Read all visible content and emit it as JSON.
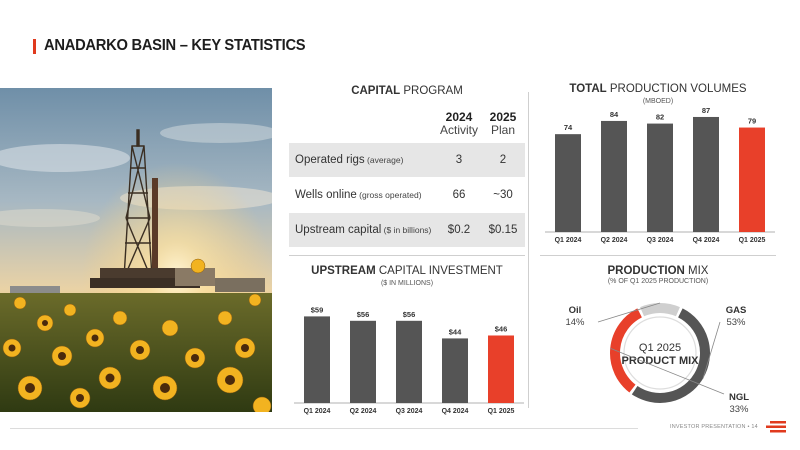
{
  "header": {
    "title": "ANADARKO BASIN – KEY STATISTICS"
  },
  "capital_program": {
    "title_bold": "CAPITAL",
    "title_rest": " PROGRAM",
    "columns": [
      {
        "year": "2024",
        "type": "Activity"
      },
      {
        "year": "2025",
        "type": "Plan"
      }
    ],
    "rows": [
      {
        "label": "Operated rigs",
        "sub": " (average)",
        "v2024": "3",
        "v2025": "2"
      },
      {
        "label": "Wells online",
        "sub": " (gross operated)",
        "v2024": "66",
        "v2025": "~30"
      },
      {
        "label": "Upstream capital",
        "sub": " ($ in billions)",
        "v2024": "$0.2",
        "v2025": "$0.15"
      }
    ]
  },
  "chart_data": [
    {
      "type": "bar",
      "title": "TOTAL PRODUCTION VOLUMES",
      "subtitle": "(MBOED)",
      "categories": [
        "Q1 2024",
        "Q2 2024",
        "Q3 2024",
        "Q4 2024",
        "Q1 2025"
      ],
      "values": [
        74,
        84,
        82,
        87,
        79
      ],
      "labels": [
        "74",
        "84",
        "82",
        "87",
        "79"
      ],
      "ylim": [
        0,
        90
      ],
      "colors": [
        "#555555",
        "#555555",
        "#555555",
        "#555555",
        "#e8402a"
      ]
    },
    {
      "type": "bar",
      "title": "UPSTREAM CAPITAL INVESTMENT",
      "subtitle": "($ IN MILLIONS)",
      "categories": [
        "Q1 2024",
        "Q2 2024",
        "Q3 2024",
        "Q4 2024",
        "Q1 2025"
      ],
      "values": [
        59,
        56,
        56,
        44,
        46
      ],
      "labels": [
        "$59",
        "$56",
        "$56",
        "$44",
        "$46"
      ],
      "ylim": [
        0,
        62
      ],
      "colors": [
        "#555555",
        "#555555",
        "#555555",
        "#555555",
        "#e8402a"
      ]
    },
    {
      "type": "pie",
      "title": "PRODUCTION MIX",
      "subtitle": "(% OF Q1 2025 PRODUCTION)",
      "center_label": [
        "Q1 2025",
        "PRODUCT MIX"
      ],
      "slices": [
        {
          "name": "GAS",
          "value": 53,
          "label": "53%",
          "color": "#555555"
        },
        {
          "name": "NGL",
          "value": 33,
          "label": "33%",
          "color": "#e8402a"
        },
        {
          "name": "Oil",
          "value": 14,
          "label": "14%",
          "color": "#cfcfcf"
        }
      ]
    }
  ],
  "footer": {
    "text": "INVESTOR PRESENTATION",
    "page": "14",
    "sep": " • "
  },
  "colors": {
    "accent": "#e03a1e",
    "bar": "#555555",
    "highlight": "#e8402a",
    "light": "#cfcfcf"
  }
}
